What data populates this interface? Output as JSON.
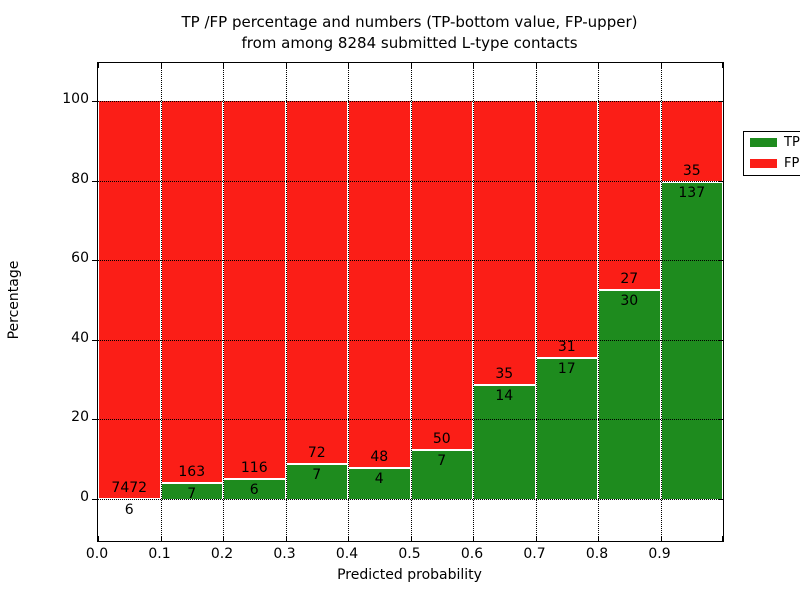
{
  "title_line1": "TP /FP percentage and numbers (TP-bottom value, FP-upper)",
  "title_line2": "from among 8284 submitted L-type contacts",
  "chart_data": {
    "type": "bar",
    "stacked": true,
    "note": "stacked percentage bars; label above boundary = FP count, below = TP count",
    "total_submitted": 8284,
    "categories": [
      "0.0",
      "0.1",
      "0.2",
      "0.3",
      "0.4",
      "0.5",
      "0.6",
      "0.7",
      "0.8",
      "0.9"
    ],
    "bin_width": 0.1,
    "series": [
      {
        "name": "TP",
        "color": "#1e8b1e",
        "values": [
          6,
          7,
          6,
          7,
          4,
          7,
          14,
          17,
          30,
          137
        ]
      },
      {
        "name": "FP",
        "color": "#fb1e17",
        "values": [
          7472,
          163,
          116,
          72,
          48,
          50,
          35,
          31,
          27,
          35
        ]
      }
    ],
    "xlabel": "Predicted probability",
    "ylabel": "Percentage",
    "x_tick_labels": [
      "0.0",
      "0.1",
      "0.2",
      "0.3",
      "0.4",
      "0.5",
      "0.6",
      "0.7",
      "0.8",
      "0.9"
    ],
    "y_tick_labels": [
      "0",
      "20",
      "40",
      "60",
      "80",
      "100"
    ],
    "y_tick_values": [
      0,
      20,
      40,
      60,
      80,
      100
    ],
    "xlim": [
      0.0,
      1.0
    ],
    "ylim": [
      -10.5,
      109.5
    ],
    "grid": "dotted",
    "legend": {
      "position": "upper right",
      "entries": [
        {
          "label": "TP",
          "color": "#1e8b1e"
        },
        {
          "label": "FP",
          "color": "#fb1e17"
        }
      ]
    }
  }
}
